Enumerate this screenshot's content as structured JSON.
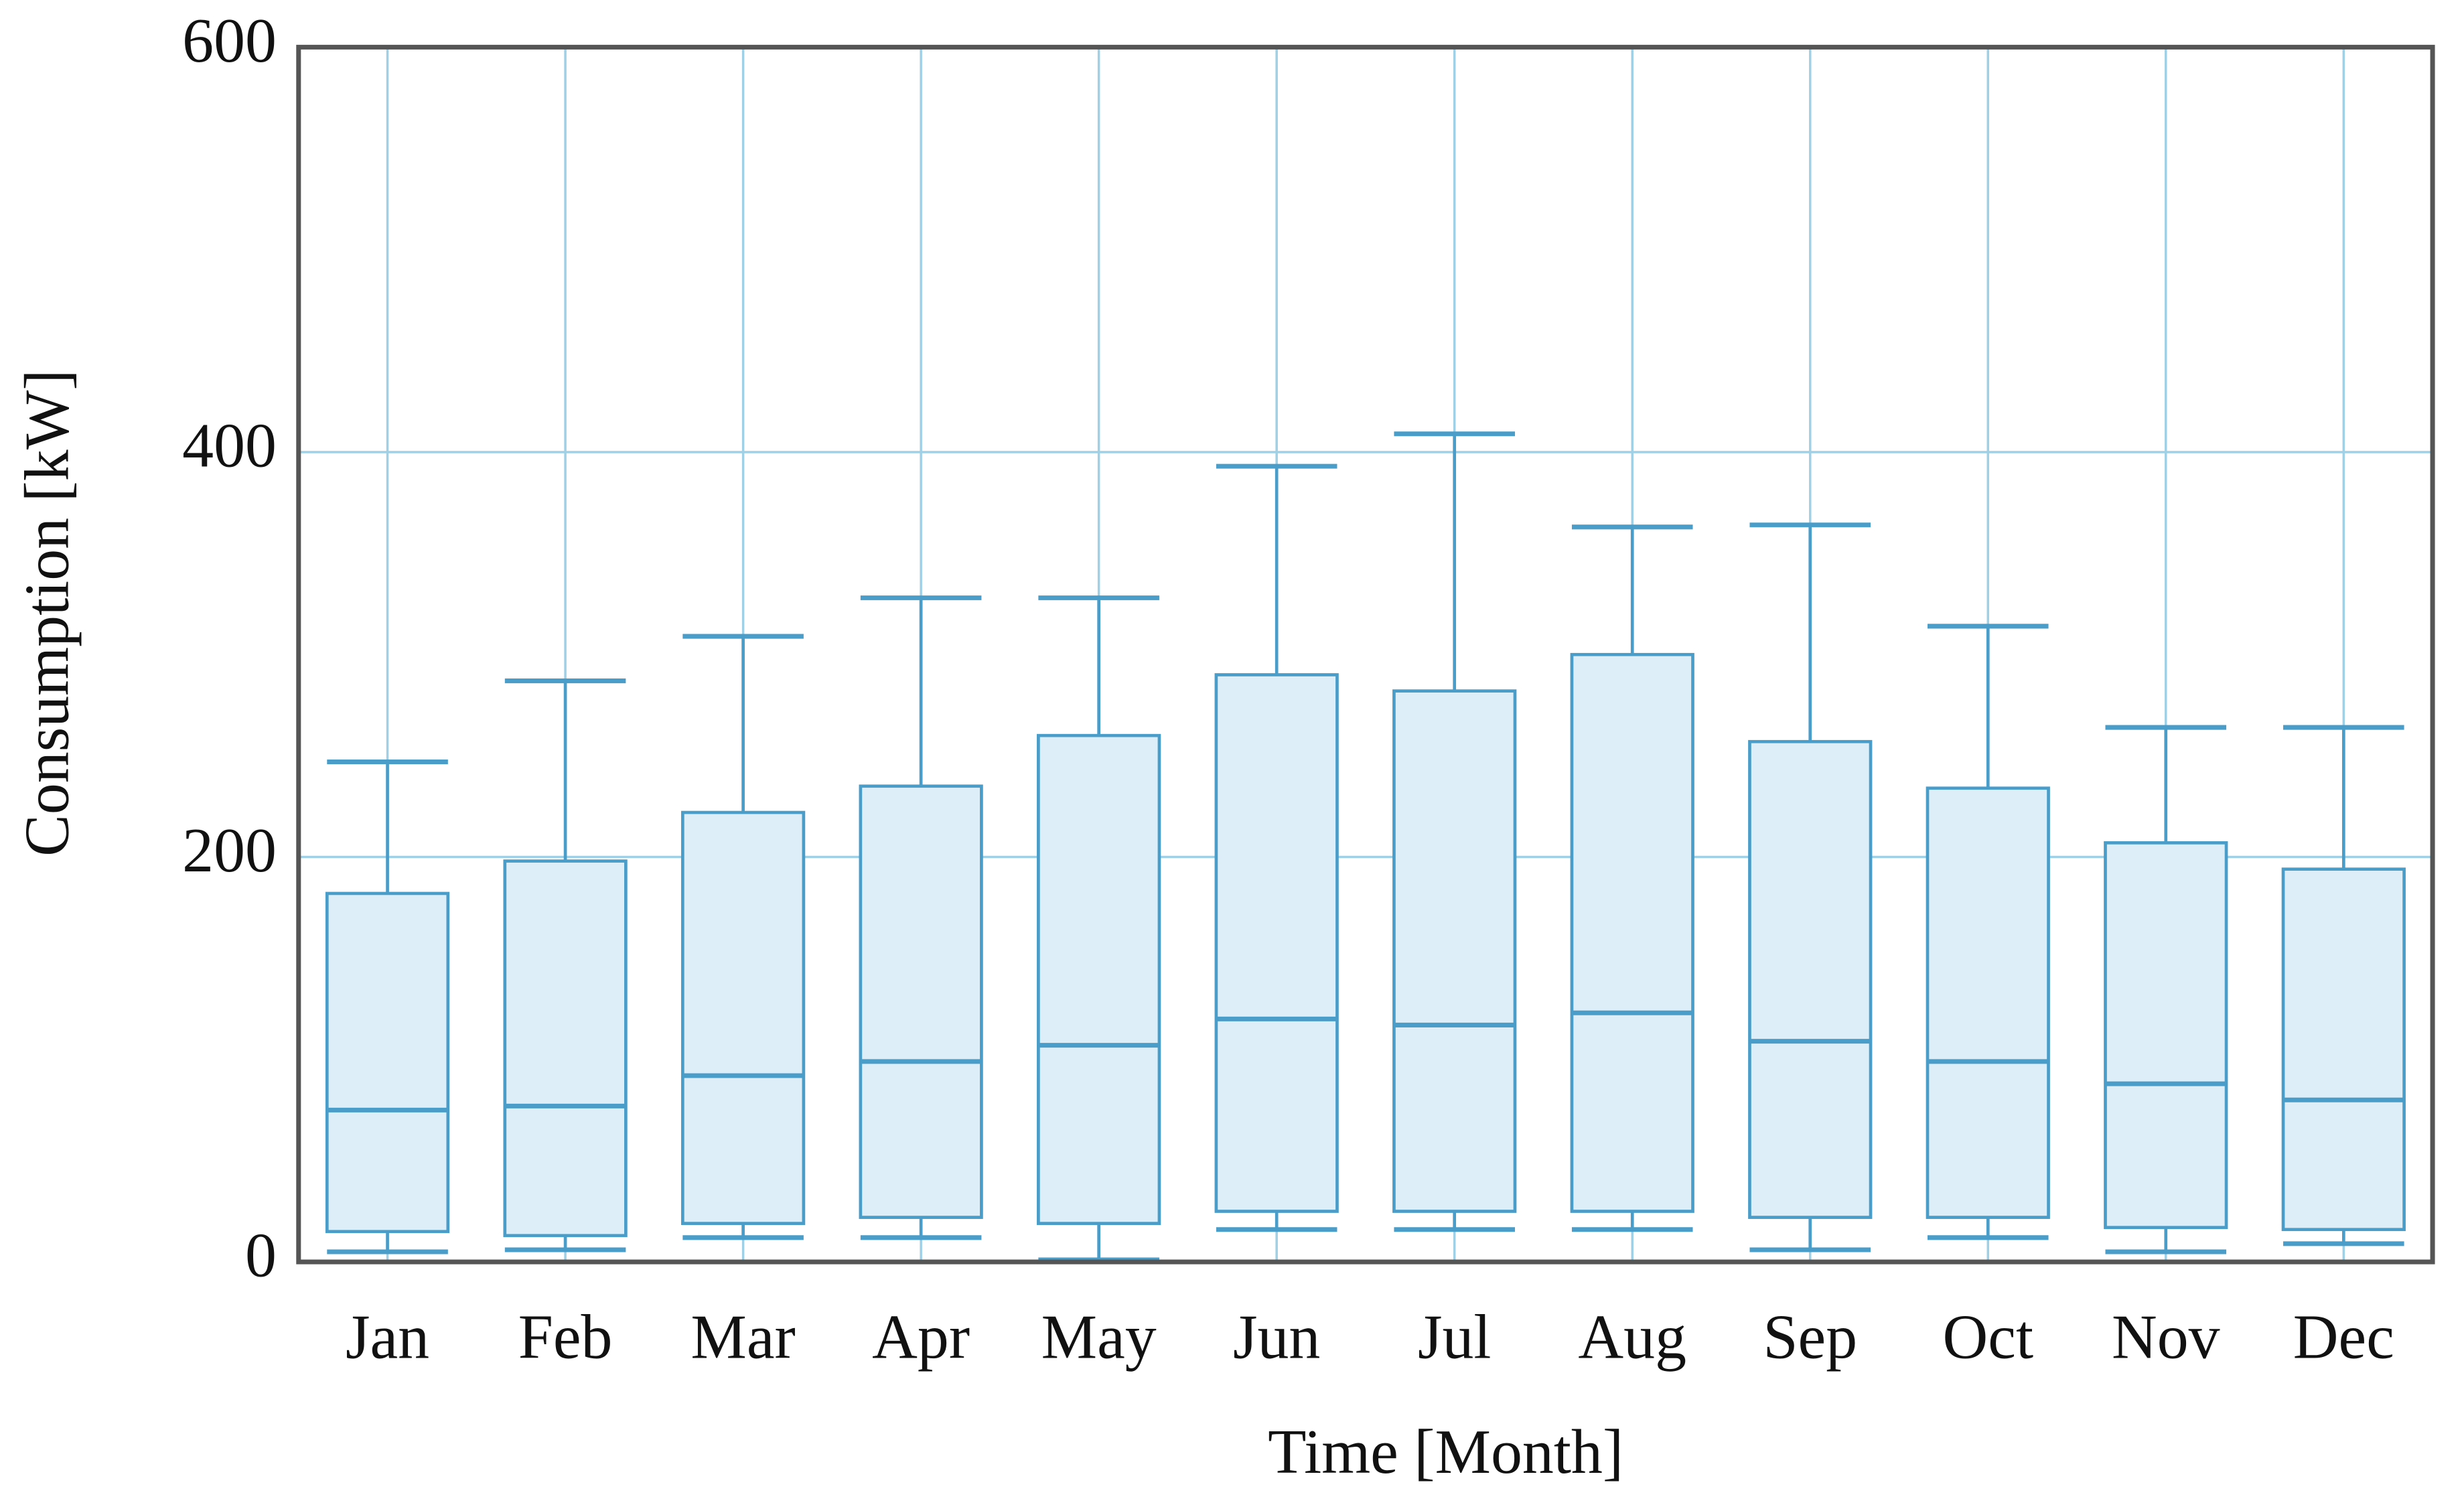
{
  "chart_data": {
    "type": "box",
    "x_label": "Time [Month]",
    "y_label": "Consumption [kW]",
    "categories": [
      "Jan",
      "Feb",
      "Mar",
      "Apr",
      "May",
      "Jun",
      "Jul",
      "Aug",
      "Sep",
      "Oct",
      "Nov",
      "Dec"
    ],
    "whisker_low": [
      5,
      6,
      12,
      12,
      1,
      16,
      16,
      16,
      6,
      12,
      5,
      9
    ],
    "q1": [
      15,
      13,
      19,
      22,
      19,
      25,
      25,
      25,
      22,
      22,
      17,
      16
    ],
    "median": [
      75,
      77,
      92,
      99,
      107,
      120,
      117,
      123,
      109,
      99,
      88,
      80
    ],
    "q3": [
      182,
      198,
      222,
      235,
      260,
      290,
      282,
      300,
      257,
      234,
      207,
      194
    ],
    "whisker_high": [
      247,
      287,
      309,
      328,
      328,
      393,
      409,
      363,
      364,
      314,
      264,
      264
    ],
    "color": "#4a9cc9",
    "fill": "#ddeef8",
    "grid_color": "#9fd0e6",
    "ylim": [
      0,
      600
    ],
    "yticks": [
      0,
      200,
      400,
      600
    ],
    "grid": true
  }
}
